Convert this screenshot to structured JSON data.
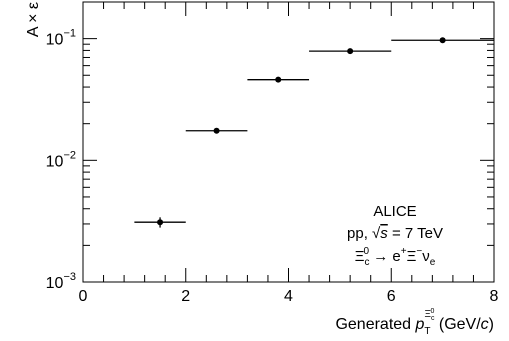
{
  "chart_data": {
    "type": "scatter",
    "x_scale": "linear",
    "y_scale": "log",
    "xlim": [
      0,
      8
    ],
    "ylim": [
      0.001,
      0.2
    ],
    "x_major_ticks": [
      0,
      2,
      4,
      6,
      8
    ],
    "x_tick_labels": [
      "0",
      "2",
      "4",
      "6",
      "8"
    ],
    "y_major_ticks": [
      0.001,
      0.01,
      0.1
    ],
    "y_tick_labels": [
      {
        "base": "10",
        "exp": "−3"
      },
      {
        "base": "10",
        "exp": "−2"
      },
      {
        "base": "10",
        "exp": "−1"
      }
    ],
    "ylabel": "A × ε",
    "xlabel": {
      "prefix": "Generated ",
      "p": "p",
      "sub": "T",
      "sup_base": "Ξ",
      "sup_sub": "c",
      "sup_sup": "0",
      "suffix_open": " (GeV/",
      "c": "c",
      "suffix_close": ")"
    },
    "points": [
      {
        "x": 1.5,
        "x_low": 1.0,
        "x_high": 2.0,
        "y": 0.0031,
        "y_err": 0.0003
      },
      {
        "x": 2.6,
        "x_low": 2.0,
        "x_high": 3.2,
        "y": 0.0175,
        "y_err": 0.0006
      },
      {
        "x": 3.8,
        "x_low": 3.2,
        "x_high": 4.4,
        "y": 0.046,
        "y_err": 0.0012
      },
      {
        "x": 5.2,
        "x_low": 4.4,
        "x_high": 6.0,
        "y": 0.079,
        "y_err": 0.002
      },
      {
        "x": 7.0,
        "x_low": 6.0,
        "x_high": 8.0,
        "y": 0.097,
        "y_err": 0.0025
      }
    ],
    "annotations": {
      "experiment": "ALICE",
      "system_prefix": "pp, ",
      "sqrt": "√",
      "s": "s",
      "energy": " = 7 TeV",
      "decay": {
        "xi": "Ξ",
        "xi_sub": "c",
        "xi_sup": "0",
        "arrow": " → e",
        "e_sup": "+",
        "xi2": "Ξ",
        "xi2_sup": "−",
        "nu": "ν",
        "nu_sub": "e"
      }
    },
    "colors": {
      "marker": "#000000",
      "axis": "#000000",
      "background": "#ffffff"
    }
  }
}
